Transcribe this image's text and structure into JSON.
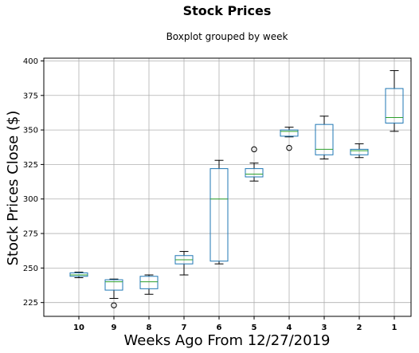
{
  "chart_data": {
    "type": "boxplot",
    "title": "Stock Prices",
    "subtitle": "Boxplot grouped by week",
    "xlabel": "Weeks Ago From 12/27/2019",
    "ylabel": "Stock Prices Close ($)",
    "ylim": [
      215,
      402
    ],
    "yticks": [
      225,
      250,
      275,
      300,
      325,
      350,
      375,
      400
    ],
    "grid": true,
    "categories": [
      "10",
      "9",
      "8",
      "7",
      "6",
      "5",
      "4",
      "3",
      "2",
      "1"
    ],
    "boxes": [
      {
        "category": "10",
        "min": 243,
        "q1": 244,
        "median": 245,
        "q3": 246.5,
        "max": 247,
        "outliers": []
      },
      {
        "category": "9",
        "min": 228,
        "q1": 234,
        "median": 240,
        "q3": 241.5,
        "max": 242,
        "outliers": [
          223
        ]
      },
      {
        "category": "8",
        "min": 231,
        "q1": 235,
        "median": 240,
        "q3": 244,
        "max": 245,
        "outliers": []
      },
      {
        "category": "7",
        "min": 245,
        "q1": 253,
        "median": 256,
        "q3": 259,
        "max": 262,
        "outliers": []
      },
      {
        "category": "6",
        "min": 253,
        "q1": 255,
        "median": 300,
        "q3": 322,
        "max": 328,
        "outliers": []
      },
      {
        "category": "5",
        "min": 313,
        "q1": 316,
        "median": 318,
        "q3": 322,
        "max": 326,
        "outliers": [
          336
        ]
      },
      {
        "category": "4",
        "min": 345,
        "q1": 345.5,
        "median": 349,
        "q3": 350,
        "max": 352,
        "outliers": [
          337
        ]
      },
      {
        "category": "3",
        "min": 329,
        "q1": 332,
        "median": 336,
        "q3": 354,
        "max": 360,
        "outliers": []
      },
      {
        "category": "2",
        "min": 330,
        "q1": 332,
        "median": 335,
        "q3": 336,
        "max": 340,
        "outliers": []
      },
      {
        "category": "1",
        "min": 349,
        "q1": 355,
        "median": 359,
        "q3": 380,
        "max": 393,
        "outliers": []
      }
    ],
    "colors": {
      "box": "#1f77b4",
      "median": "#2ca02c",
      "whisker": "#000000",
      "grid": "#b0b0b0"
    }
  }
}
